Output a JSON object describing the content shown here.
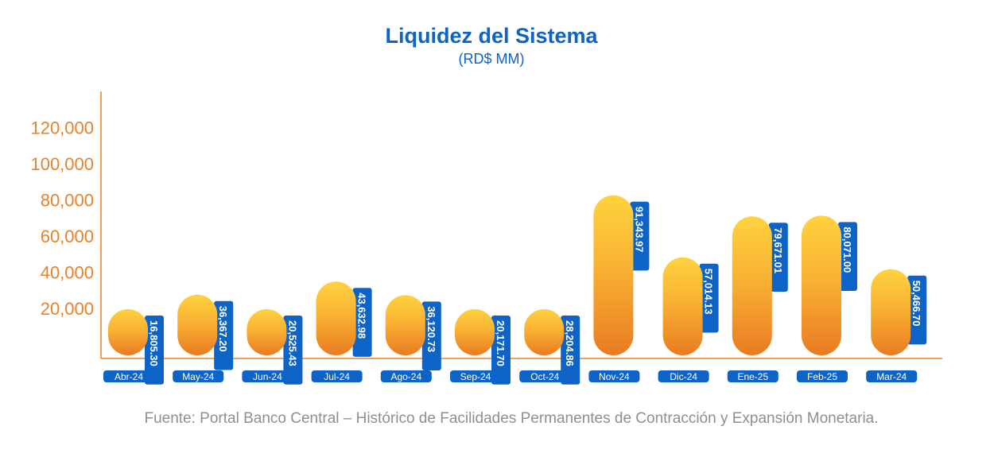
{
  "chart_data": {
    "type": "bar",
    "title": "Liquidez del Sistema",
    "subtitle": "(RD$ MM)",
    "categories": [
      "Abr-24",
      "May-24",
      "Jun-24",
      "Jul-24",
      "Ago-24",
      "Sep-24",
      "Oct-24",
      "Nov-24",
      "Dic-24",
      "Ene-25",
      "Feb-25",
      "Mar-24"
    ],
    "values": [
      16805.3,
      36367.2,
      20525.43,
      43632.98,
      36120.73,
      20171.7,
      28204.86,
      91343.97,
      57014.13,
      79671.01,
      80071.0,
      50466.7
    ],
    "value_labels": [
      "16,805.30",
      "36,367.20",
      "20,525.43",
      "43,632.98",
      "36,120.73",
      "20,171.70",
      "28,204.86",
      "91,343.97",
      "57,014.13",
      "79,671.01",
      "80,071.00",
      "50,466.70"
    ],
    "yticks": [
      20000,
      40000,
      60000,
      80000,
      100000,
      120000
    ],
    "ytick_labels": [
      "20,000",
      "40,000",
      "60,000",
      "80,000",
      "100,000",
      "120,000"
    ],
    "grid": false,
    "colors": {
      "bar_top": "#FFD23F",
      "bar_bottom": "#E97B22",
      "label_box": "#0E63C7",
      "axis": "#E8822A",
      "title": "#0E63C7"
    }
  },
  "source": "Fuente: Portal Banco Central – Histórico de Facilidades Permanentes de Contracción y Expansión Monetaria."
}
